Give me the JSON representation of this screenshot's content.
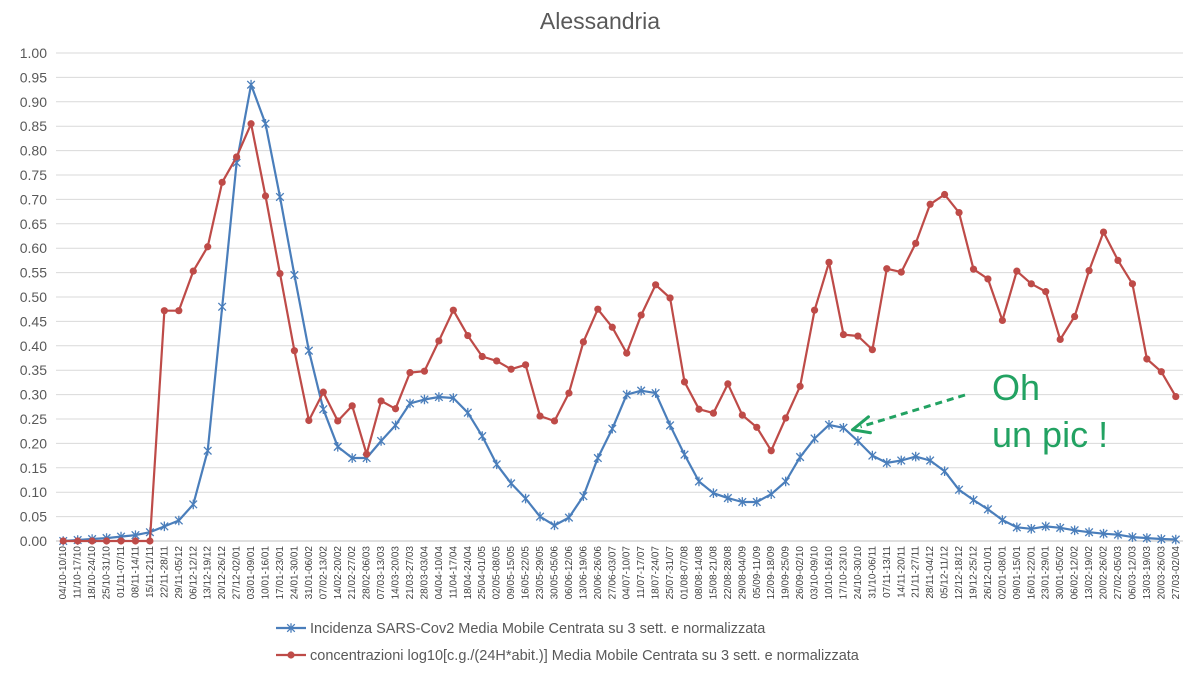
{
  "chart_data": {
    "type": "line",
    "title": "Alessandria",
    "xlabel": "",
    "ylabel": "",
    "ylim": [
      0,
      1
    ],
    "yticks": [
      "0.00",
      "0.05",
      "0.10",
      "0.15",
      "0.20",
      "0.25",
      "0.30",
      "0.35",
      "0.40",
      "0.45",
      "0.50",
      "0.55",
      "0.60",
      "0.65",
      "0.70",
      "0.75",
      "0.80",
      "0.85",
      "0.90",
      "0.95",
      "1.00"
    ],
    "grid": true,
    "legend_position": "bottom",
    "categories": [
      "04/10-10/10",
      "11/10-17/10",
      "18/10-24/10",
      "25/10-31/10",
      "01/11-07/11",
      "08/11-14/11",
      "15/11-21/11",
      "22/11-28/11",
      "29/11-05/12",
      "06/12-12/12",
      "13/12-19/12",
      "20/12-26/12",
      "27/12-02/01",
      "03/01-09/01",
      "10/01-16/01",
      "17/01-23/01",
      "24/01-30/01",
      "31/01-06/02",
      "07/02-13/02",
      "14/02-20/02",
      "21/02-27/02",
      "28/02-06/03",
      "07/03-13/03",
      "14/03-20/03",
      "21/03-27/03",
      "28/03-03/04",
      "04/04-10/04",
      "11/04-17/04",
      "18/04-24/04",
      "25/04-01/05",
      "02/05-08/05",
      "09/05-15/05",
      "16/05-22/05",
      "23/05-29/05",
      "30/05-05/06",
      "06/06-12/06",
      "13/06-19/06",
      "20/06-26/06",
      "27/06-03/07",
      "04/07-10/07",
      "11/07-17/07",
      "18/07-24/07",
      "25/07-31/07",
      "01/08-07/08",
      "08/08-14/08",
      "15/08-21/08",
      "22/08-28/08",
      "29/08-04/09",
      "05/09-11/09",
      "12/09-18/09",
      "19/09-25/09",
      "26/09-02/10",
      "03/10-09/10",
      "10/10-16/10",
      "17/10-23/10",
      "24/10-30/10",
      "31/10-06/11",
      "07/11-13/11",
      "14/11-20/11",
      "21/11-27/11",
      "28/11-04/12",
      "05/12-11/12",
      "12/12-18/12",
      "19/12-25/12",
      "26/12-01/01",
      "02/01-08/01",
      "09/01-15/01",
      "16/01-22/01",
      "23/01-29/01",
      "30/01-05/02",
      "06/02-12/02",
      "13/02-19/02",
      "20/02-26/02",
      "27/02-05/03",
      "06/03-12/03",
      "13/03-19/03",
      "20/03-26/03",
      "27/03-02/04"
    ],
    "series": [
      {
        "name": "Incidenza SARS-Cov2 Media Mobile Centrata su 3 sett. e normalizzata",
        "color": "#4a7ebb",
        "marker": "star",
        "values": [
          0.0,
          0.002,
          0.004,
          0.006,
          0.009,
          0.012,
          0.018,
          0.03,
          0.042,
          0.075,
          0.185,
          0.48,
          0.775,
          0.935,
          0.855,
          0.705,
          0.545,
          0.39,
          0.27,
          0.193,
          0.17,
          0.17,
          0.205,
          0.237,
          0.282,
          0.29,
          0.295,
          0.293,
          0.263,
          0.215,
          0.157,
          0.118,
          0.087,
          0.05,
          0.032,
          0.048,
          0.092,
          0.17,
          0.23,
          0.3,
          0.308,
          0.303,
          0.237,
          0.177,
          0.122,
          0.098,
          0.088,
          0.08,
          0.08,
          0.096,
          0.122,
          0.172,
          0.21,
          0.238,
          0.232,
          0.205,
          0.175,
          0.16,
          0.165,
          0.173,
          0.165,
          0.143,
          0.105,
          0.084,
          0.065,
          0.043,
          0.028,
          0.025,
          0.03,
          0.027,
          0.022,
          0.018,
          0.015,
          0.013,
          0.008,
          0.006,
          0.004,
          0.003
        ]
      },
      {
        "name": "concentrazioni log10[c.g./(24H*abit.)] Media Mobile Centrata su 3 sett. e normalizzata",
        "color": "#be4b48",
        "marker": "circle",
        "values": [
          0.0,
          0.0,
          0.0,
          0.0,
          0.0,
          0.0,
          0.0,
          0.472,
          0.472,
          0.553,
          0.603,
          0.735,
          0.787,
          0.855,
          0.707,
          0.548,
          0.39,
          0.247,
          0.305,
          0.246,
          0.277,
          0.178,
          0.287,
          0.271,
          0.345,
          0.348,
          0.41,
          0.473,
          0.421,
          0.378,
          0.369,
          0.352,
          0.361,
          0.256,
          0.246,
          0.303,
          0.408,
          0.475,
          0.438,
          0.385,
          0.463,
          0.525,
          0.498,
          0.326,
          0.27,
          0.262,
          0.322,
          0.258,
          0.233,
          0.185,
          0.252,
          0.317,
          0.473,
          0.571,
          0.423,
          0.42,
          0.392,
          0.558,
          0.551,
          0.61,
          0.69,
          0.71,
          0.673,
          0.557,
          0.537,
          0.452,
          0.553,
          0.527,
          0.511,
          0.413,
          0.46,
          0.554,
          0.633,
          0.575,
          0.527,
          0.373,
          0.347,
          0.296
        ]
      }
    ],
    "annotation": {
      "lines": [
        "Oh",
        "un pic !"
      ],
      "color": "#22a262",
      "arrow_target_category": "17/10-23/10"
    }
  }
}
